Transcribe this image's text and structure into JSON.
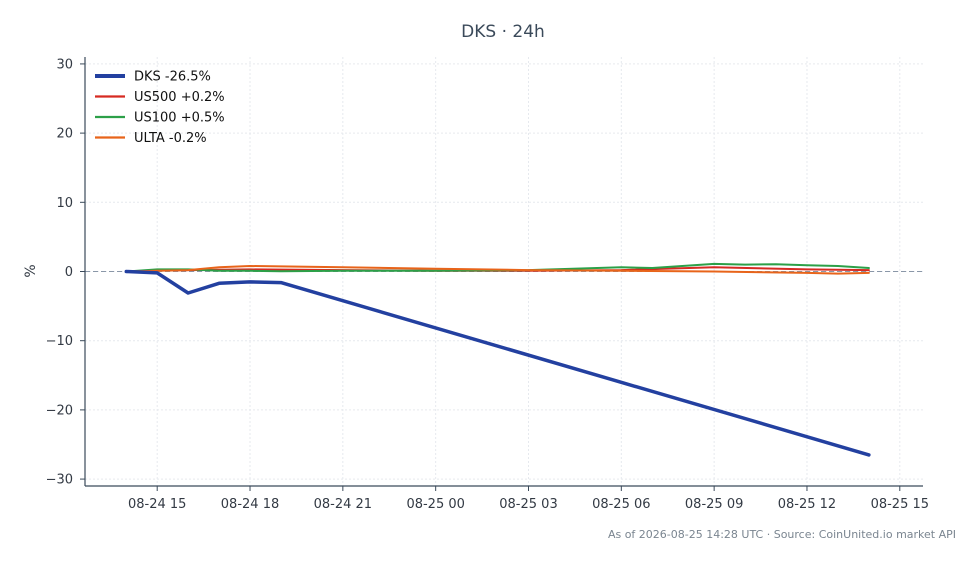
{
  "chart_data": {
    "type": "line",
    "title": "DKS · 24h",
    "xlabel": "",
    "ylabel": "%",
    "ylim": [
      -31,
      31
    ],
    "yticks": [
      -30,
      -20,
      -10,
      0,
      10,
      20,
      30
    ],
    "ytick_labels": [
      "−30",
      "−20",
      "−10",
      "0",
      "10",
      "20",
      "30"
    ],
    "xlim": [
      "2026-08-24 12:40",
      "2026-08-25 15:45"
    ],
    "xticks": [
      "2026-08-24 15:00",
      "2026-08-24 18:00",
      "2026-08-24 21:00",
      "2026-08-25 00:00",
      "2026-08-25 03:00",
      "2026-08-25 06:00",
      "2026-08-25 09:00",
      "2026-08-25 12:00",
      "2026-08-25 15:00"
    ],
    "xtick_labels": [
      "08-24 15",
      "08-24 18",
      "08-24 21",
      "08-25 00",
      "08-25 03",
      "08-25 06",
      "08-25 09",
      "08-25 12",
      "08-25 15"
    ],
    "zero_line": true,
    "grid": true,
    "legend_position": "top-left",
    "series": [
      {
        "name": "DKS -26.5%",
        "color": "#2340a0",
        "width": 3.5,
        "points": [
          [
            "2026-08-24 14:00",
            0
          ],
          [
            "2026-08-24 15:00",
            -0.2
          ],
          [
            "2026-08-24 16:00",
            -3.1
          ],
          [
            "2026-08-24 17:00",
            -1.7
          ],
          [
            "2026-08-24 18:00",
            -1.5
          ],
          [
            "2026-08-24 19:00",
            -1.6
          ],
          [
            "2026-08-25 14:00",
            -26.5
          ]
        ]
      },
      {
        "name": "US500 +0.2%",
        "color": "#d62a22",
        "width": 2,
        "points": [
          [
            "2026-08-24 14:00",
            0
          ],
          [
            "2026-08-24 15:00",
            0.15
          ],
          [
            "2026-08-24 16:00",
            0.2
          ],
          [
            "2026-08-24 18:00",
            0.3
          ],
          [
            "2026-08-24 21:00",
            0.2
          ],
          [
            "2026-08-25 00:00",
            0.1
          ],
          [
            "2026-08-25 03:00",
            0.1
          ],
          [
            "2026-08-25 06:00",
            0.2
          ],
          [
            "2026-08-25 09:00",
            0.6
          ],
          [
            "2026-08-25 12:00",
            0.3
          ],
          [
            "2026-08-25 14:00",
            0.2
          ]
        ]
      },
      {
        "name": "US100 +0.5%",
        "color": "#2ca048",
        "width": 2,
        "points": [
          [
            "2026-08-24 14:00",
            0
          ],
          [
            "2026-08-24 15:00",
            0.3
          ],
          [
            "2026-08-24 16:00",
            0.3
          ],
          [
            "2026-08-24 17:00",
            0.1
          ],
          [
            "2026-08-24 18:00",
            0.1
          ],
          [
            "2026-08-24 19:00",
            0.05
          ],
          [
            "2026-08-24 21:00",
            0.1
          ],
          [
            "2026-08-25 00:00",
            0.1
          ],
          [
            "2026-08-25 03:00",
            0.2
          ],
          [
            "2026-08-25 06:00",
            0.6
          ],
          [
            "2026-08-25 07:00",
            0.5
          ],
          [
            "2026-08-25 09:00",
            1.1
          ],
          [
            "2026-08-25 10:00",
            1.0
          ],
          [
            "2026-08-25 11:00",
            1.05
          ],
          [
            "2026-08-25 12:00",
            0.9
          ],
          [
            "2026-08-25 13:00",
            0.8
          ],
          [
            "2026-08-25 14:00",
            0.5
          ]
        ]
      },
      {
        "name": "ULTA -0.2%",
        "color": "#e8641a",
        "width": 2,
        "points": [
          [
            "2026-08-24 14:00",
            0
          ],
          [
            "2026-08-24 15:00",
            0.1
          ],
          [
            "2026-08-24 16:00",
            0.2
          ],
          [
            "2026-08-24 17:00",
            0.6
          ],
          [
            "2026-08-24 18:00",
            0.8
          ],
          [
            "2026-08-24 21:00",
            0.6
          ],
          [
            "2026-08-25 00:00",
            0.4
          ],
          [
            "2026-08-25 03:00",
            0.2
          ],
          [
            "2026-08-25 06:00",
            0.1
          ],
          [
            "2026-08-25 09:00",
            0.0
          ],
          [
            "2026-08-25 12:00",
            -0.2
          ],
          [
            "2026-08-25 13:00",
            -0.3
          ],
          [
            "2026-08-25 14:00",
            -0.2
          ]
        ]
      }
    ]
  },
  "footer": "As of 2026-08-25 14:28 UTC · Source: CoinUnited.io market API"
}
